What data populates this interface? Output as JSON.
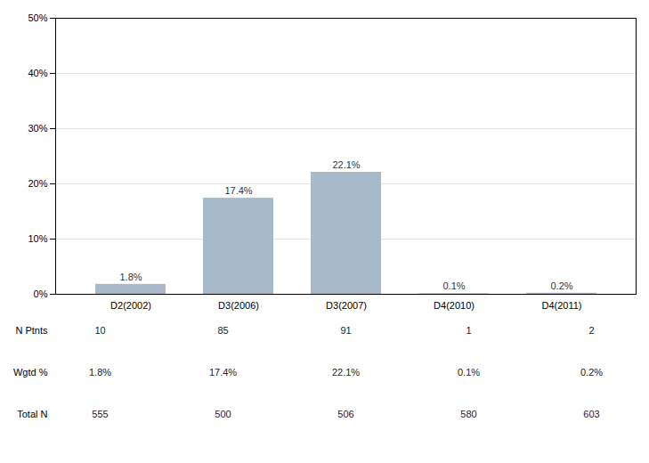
{
  "chart_data": {
    "type": "bar",
    "categories": [
      "D2(2002)",
      "D3(2006)",
      "D3(2007)",
      "D4(2010)",
      "D4(2011)"
    ],
    "values": [
      1.8,
      17.4,
      22.1,
      0.1,
      0.2
    ],
    "value_labels": [
      "1.8%",
      "17.4%",
      "22.1%",
      "0.1%",
      "0.2%"
    ],
    "data_labels": true,
    "color": "#a8baca",
    "ylim": [
      0,
      50
    ],
    "yticks": [
      {
        "value": 0,
        "label": "0%"
      },
      {
        "value": 10,
        "label": "10%"
      },
      {
        "value": 20,
        "label": "20%"
      },
      {
        "value": 30,
        "label": "30%"
      },
      {
        "value": 40,
        "label": "40%"
      },
      {
        "value": 50,
        "label": "50%"
      }
    ],
    "grid": true,
    "table": [
      {
        "name": "N Ptnts",
        "values": [
          "10",
          "85",
          "91",
          "1",
          "2"
        ]
      },
      {
        "name": "Wgtd %",
        "values": [
          "1.8%",
          "17.4%",
          "22.1%",
          "0.1%",
          "0.2%"
        ]
      },
      {
        "name": "Total N",
        "values": [
          "555",
          "500",
          "506",
          "580",
          "603"
        ]
      }
    ]
  }
}
